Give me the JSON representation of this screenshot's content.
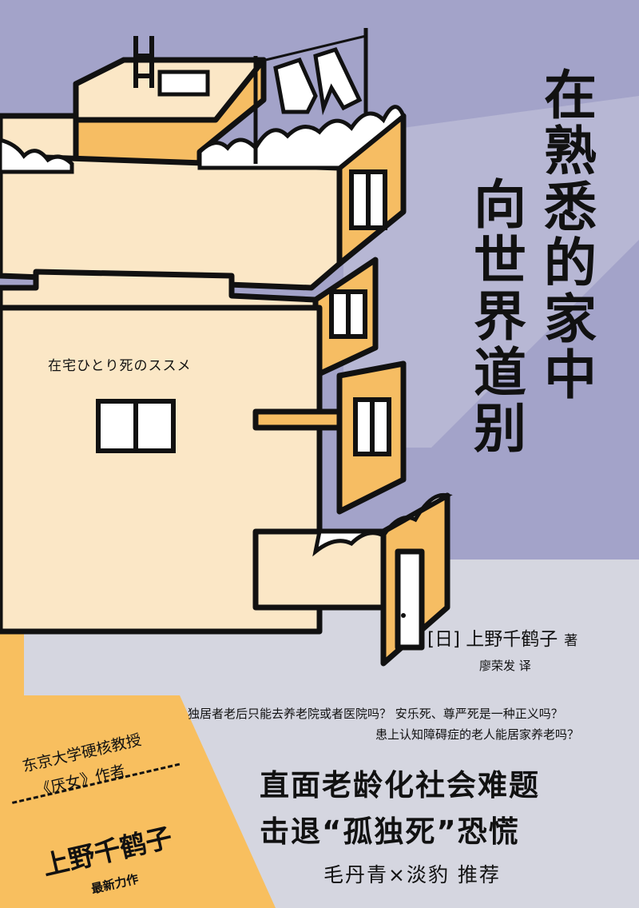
{
  "cover": {
    "title_columns": [
      "在熟悉的家中",
      "向世界道别"
    ],
    "original_title": "在宅ひとり死のススメ",
    "author_line": "[日] 上野千鹤子",
    "author_role": "著",
    "translator_line": "廖荣发  译",
    "questions": [
      "独居者老后只能去养老院或者医院吗？ 安乐死、尊严死是一种正义吗？",
      "患上认知障碍症的老人能居家养老吗？"
    ],
    "headlines": [
      "直面老龄化社会难题",
      "击退“孤独死”恐慌"
    ],
    "recommenders": "毛丹青×淡豹  推荐",
    "badge": {
      "line1": "东京大学硬核教授",
      "line2": "《厌女》作者",
      "author": "上野千鹤子",
      "tagline": "最新力作"
    }
  },
  "colors": {
    "sky": "#a3a3c9",
    "ground": "#d5d6e0",
    "building_face": "#fbe7c6",
    "building_side": "#f6bd63",
    "badge_orange": "#f8bf5f",
    "outline": "#111111"
  }
}
